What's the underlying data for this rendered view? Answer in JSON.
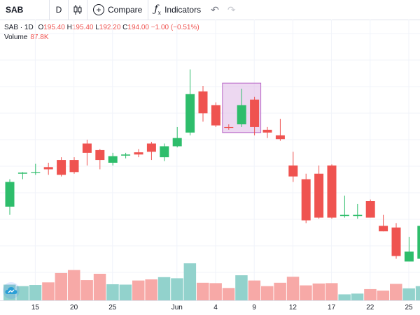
{
  "toolbar": {
    "symbol": "SAB",
    "interval": "D",
    "compare_label": "Compare",
    "indicators_label": "Indicators",
    "chart_type_icon": "candlestick-icon",
    "undo_icon": "undo-icon",
    "redo_icon": "redo-icon"
  },
  "legend": {
    "symbol_interval": "SAB · 1D",
    "open_label": "O",
    "open": "195.40",
    "high_label": "H",
    "high": "195.40",
    "low_label": "L",
    "low": "192.20",
    "close_label": "C",
    "close": "194.00",
    "change": "−1.00 (−0.51%)",
    "volume_label": "Volume",
    "volume": "87.8K"
  },
  "colors": {
    "up": "#26a69a",
    "up_body": "#2ebd6b",
    "down": "#ef5350",
    "vol_up": "#92d2cc",
    "vol_down": "#f7a9a7",
    "highlight_fill": "#e1bee7",
    "highlight_stroke": "#ba68c8",
    "grid": "#f0f3fa"
  },
  "x_axis": {
    "ticks": [
      "15",
      "20",
      "25",
      "Jun",
      "4",
      "9",
      "12",
      "17",
      "22",
      "25"
    ]
  },
  "chart_data": {
    "type": "candlestick",
    "ylim": [
      180,
      215
    ],
    "volume_max": 140,
    "candles": [
      {
        "o": 186.0,
        "h": 191.0,
        "l": 184.5,
        "c": 190.5,
        "v": 42,
        "dir": "up"
      },
      {
        "o": 192.0,
        "h": 192.3,
        "l": 191.0,
        "c": 192.2,
        "v": 38,
        "dir": "up"
      },
      {
        "o": 192.3,
        "h": 193.8,
        "l": 191.8,
        "c": 192.3,
        "v": 41,
        "dir": "up"
      },
      {
        "o": 193.2,
        "h": 194.0,
        "l": 191.8,
        "c": 192.8,
        "v": 48,
        "dir": "down"
      },
      {
        "o": 194.5,
        "h": 195.0,
        "l": 191.5,
        "c": 191.8,
        "v": 73,
        "dir": "down"
      },
      {
        "o": 194.5,
        "h": 195.0,
        "l": 192.0,
        "c": 192.3,
        "v": 81,
        "dir": "down"
      },
      {
        "o": 197.5,
        "h": 198.2,
        "l": 193.5,
        "c": 195.8,
        "v": 54,
        "dir": "down"
      },
      {
        "o": 196.3,
        "h": 196.5,
        "l": 192.8,
        "c": 194.5,
        "v": 71,
        "dir": "down"
      },
      {
        "o": 194.0,
        "h": 195.8,
        "l": 193.5,
        "c": 195.2,
        "v": 43,
        "dir": "up"
      },
      {
        "o": 195.3,
        "h": 195.8,
        "l": 194.8,
        "c": 195.5,
        "v": 42,
        "dir": "up"
      },
      {
        "o": 195.5,
        "h": 196.5,
        "l": 195.0,
        "c": 195.9,
        "v": 53,
        "dir": "down"
      },
      {
        "o": 197.5,
        "h": 197.8,
        "l": 194.5,
        "c": 196.0,
        "v": 56,
        "dir": "down"
      },
      {
        "o": 195.0,
        "h": 197.5,
        "l": 194.3,
        "c": 197.0,
        "v": 62,
        "dir": "up"
      },
      {
        "o": 197.0,
        "h": 200.5,
        "l": 196.8,
        "c": 198.5,
        "v": 59,
        "dir": "up"
      },
      {
        "o": 199.5,
        "h": 211.0,
        "l": 199.0,
        "c": 206.5,
        "v": 99,
        "dir": "up"
      },
      {
        "o": 207.0,
        "h": 208.0,
        "l": 201.5,
        "c": 203.0,
        "v": 47,
        "dir": "down"
      },
      {
        "o": 204.5,
        "h": 205.0,
        "l": 200.5,
        "c": 200.8,
        "v": 46,
        "dir": "down"
      },
      {
        "o": 200.5,
        "h": 201.0,
        "l": 200.0,
        "c": 200.4,
        "v": 33,
        "dir": "down"
      },
      {
        "o": 201.0,
        "h": 207.5,
        "l": 200.5,
        "c": 204.5,
        "v": 67,
        "dir": "up"
      },
      {
        "o": 205.5,
        "h": 206.0,
        "l": 199.0,
        "c": 200.5,
        "v": 53,
        "dir": "down"
      },
      {
        "o": 200.0,
        "h": 200.5,
        "l": 198.5,
        "c": 199.5,
        "v": 38,
        "dir": "down"
      },
      {
        "o": 199.0,
        "h": 202.0,
        "l": 198.0,
        "c": 198.3,
        "v": 47,
        "dir": "down"
      },
      {
        "o": 193.5,
        "h": 196.0,
        "l": 190.5,
        "c": 191.5,
        "v": 63,
        "dir": "down"
      },
      {
        "o": 191.0,
        "h": 192.0,
        "l": 183.0,
        "c": 183.5,
        "v": 40,
        "dir": "down"
      },
      {
        "o": 192.0,
        "h": 193.5,
        "l": 183.8,
        "c": 184.0,
        "v": 45,
        "dir": "down"
      },
      {
        "o": 193.5,
        "h": 193.7,
        "l": 183.8,
        "c": 184.0,
        "v": 46,
        "dir": "down"
      },
      {
        "o": 184.3,
        "h": 188.0,
        "l": 184.0,
        "c": 184.5,
        "v": 16,
        "dir": "up"
      },
      {
        "o": 184.3,
        "h": 186.5,
        "l": 183.8,
        "c": 184.5,
        "v": 18,
        "dir": "up"
      },
      {
        "o": 187.0,
        "h": 187.3,
        "l": 184.0,
        "c": 184.0,
        "v": 30,
        "dir": "down"
      },
      {
        "o": 182.5,
        "h": 184.5,
        "l": 181.5,
        "c": 181.5,
        "v": 26,
        "dir": "down"
      },
      {
        "o": 182.2,
        "h": 183.0,
        "l": 176.5,
        "c": 177.0,
        "v": 44,
        "dir": "down"
      },
      {
        "o": 176.0,
        "h": 180.5,
        "l": 176.0,
        "c": 177.8,
        "v": 32,
        "dir": "up"
      },
      {
        "o": 176.5,
        "h": 183.0,
        "l": 176.3,
        "c": 182.5,
        "v": 38,
        "dir": "up"
      }
    ],
    "highlight": {
      "from_index": 17,
      "to_index": 19,
      "y_from": 199.5,
      "y_to": 208.5
    }
  }
}
